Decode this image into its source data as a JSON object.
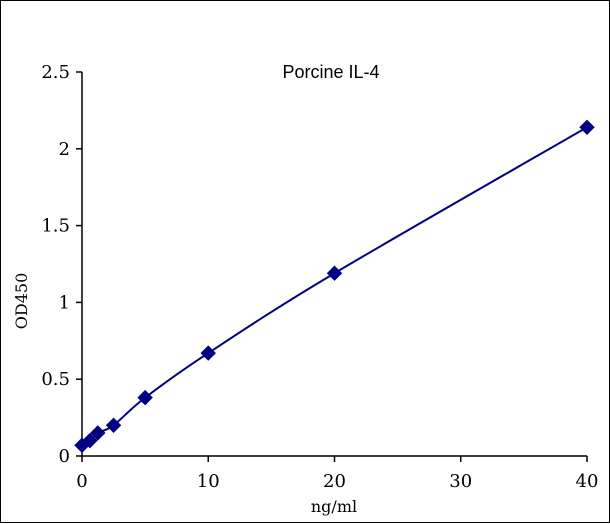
{
  "chart_data": {
    "type": "scatter",
    "title": "Porcine IL-4",
    "xlabel": "ng/ml",
    "ylabel": "OD450",
    "xlim": [
      0,
      40
    ],
    "ylim": [
      0,
      2.5
    ],
    "x_ticks": [
      "0",
      "10",
      "20",
      "30",
      "40"
    ],
    "y_ticks": [
      "0",
      "0.5",
      "1",
      "1.5",
      "2",
      "2.5"
    ],
    "grid": false,
    "legend": "none",
    "series": [
      {
        "x": [
          0,
          0.625,
          1.25,
          2.5,
          5,
          10,
          20,
          40
        ],
        "y": [
          0.07,
          0.1,
          0.15,
          0.2,
          0.38,
          0.67,
          1.19,
          2.14
        ],
        "color": "#000080",
        "marker": "diamond",
        "trendline": "smooth"
      }
    ]
  }
}
